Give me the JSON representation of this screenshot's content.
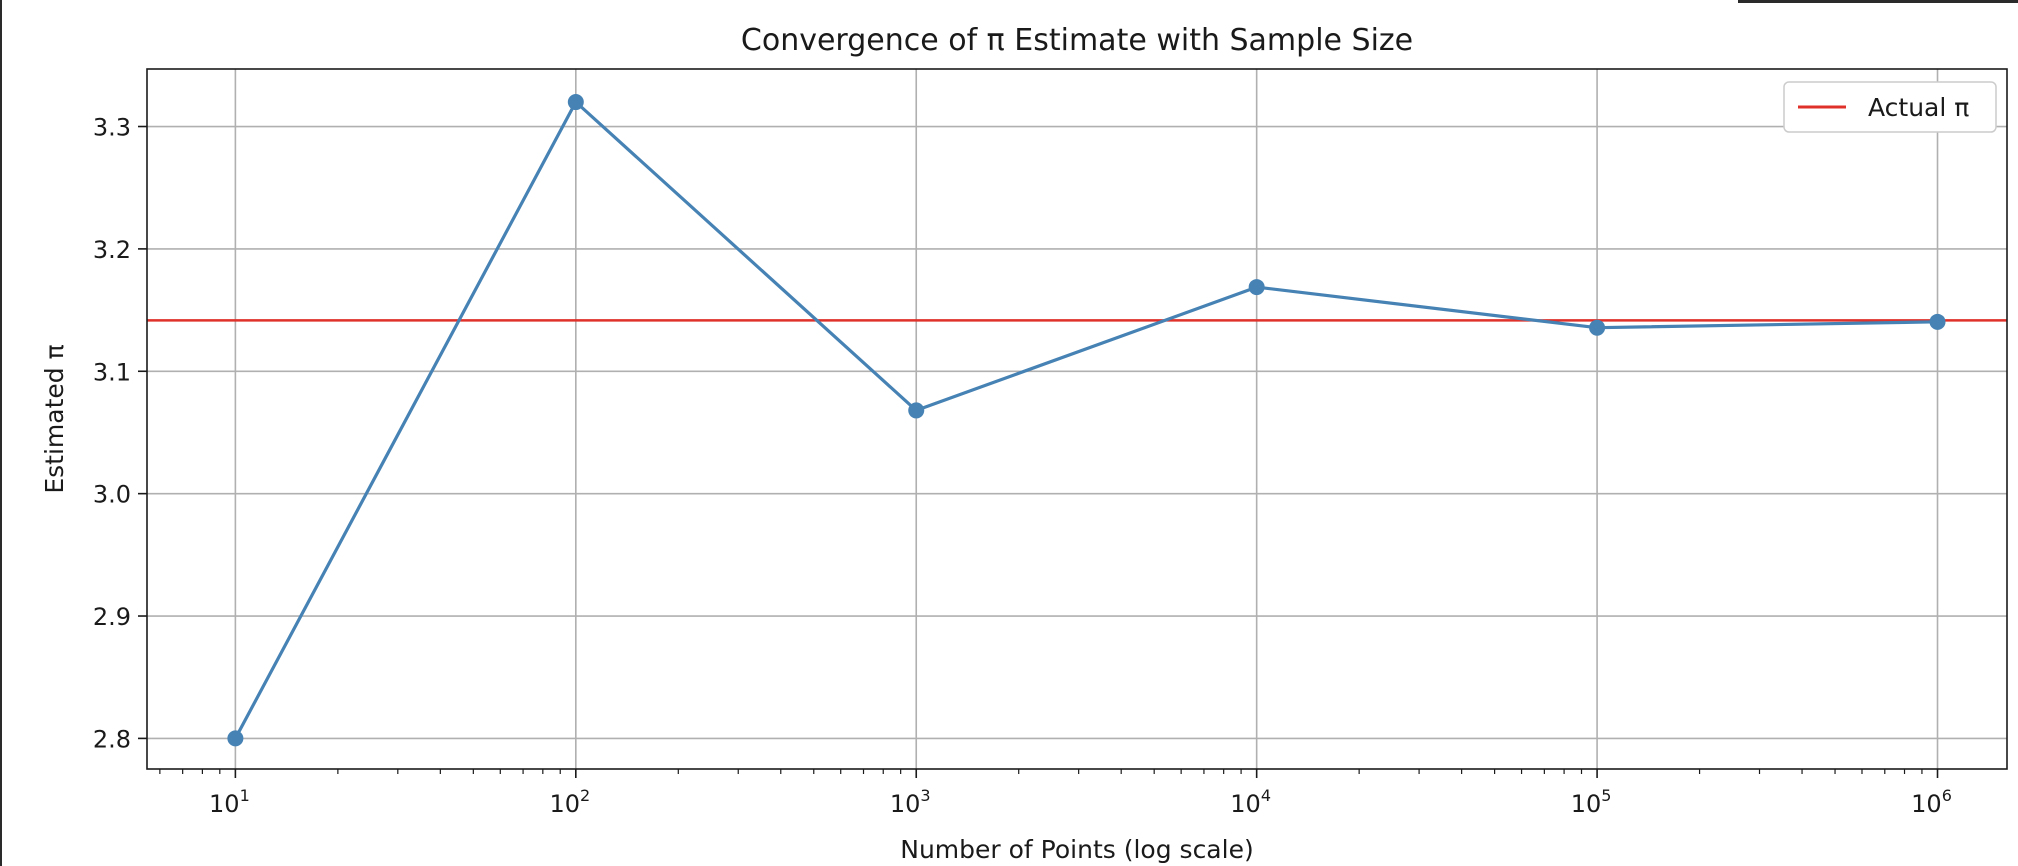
{
  "chart_data": {
    "type": "line",
    "title": "Convergence of π Estimate with Sample Size",
    "xlabel": "Number of Points (log scale)",
    "ylabel": "Estimated π",
    "x_scale": "log",
    "xlim": [
      5.5,
      1600000
    ],
    "ylim": [
      2.775,
      3.347
    ],
    "grid": true,
    "legend_position": "top-right",
    "x_ticks": [
      {
        "value": 10,
        "base": "10",
        "exp": "1"
      },
      {
        "value": 100,
        "base": "10",
        "exp": "2"
      },
      {
        "value": 1000,
        "base": "10",
        "exp": "3"
      },
      {
        "value": 10000,
        "base": "10",
        "exp": "4"
      },
      {
        "value": 100000,
        "base": "10",
        "exp": "5"
      },
      {
        "value": 1000000,
        "base": "10",
        "exp": "6"
      }
    ],
    "y_ticks": [
      {
        "value": 2.8,
        "label": "2.8"
      },
      {
        "value": 2.9,
        "label": "2.9"
      },
      {
        "value": 3.0,
        "label": "3.0"
      },
      {
        "value": 3.1,
        "label": "3.1"
      },
      {
        "value": 3.2,
        "label": "3.2"
      },
      {
        "value": 3.3,
        "label": "3.3"
      }
    ],
    "series": [
      {
        "x": [
          10,
          100,
          1000,
          10000,
          100000,
          1000000
        ],
        "values": [
          2.8,
          3.32,
          3.068,
          3.1688,
          3.1356,
          3.1404
        ],
        "color": "#4682b4"
      }
    ],
    "reference_line": {
      "name": "Actual π",
      "value": 3.14159,
      "color": "#e0302a"
    }
  }
}
